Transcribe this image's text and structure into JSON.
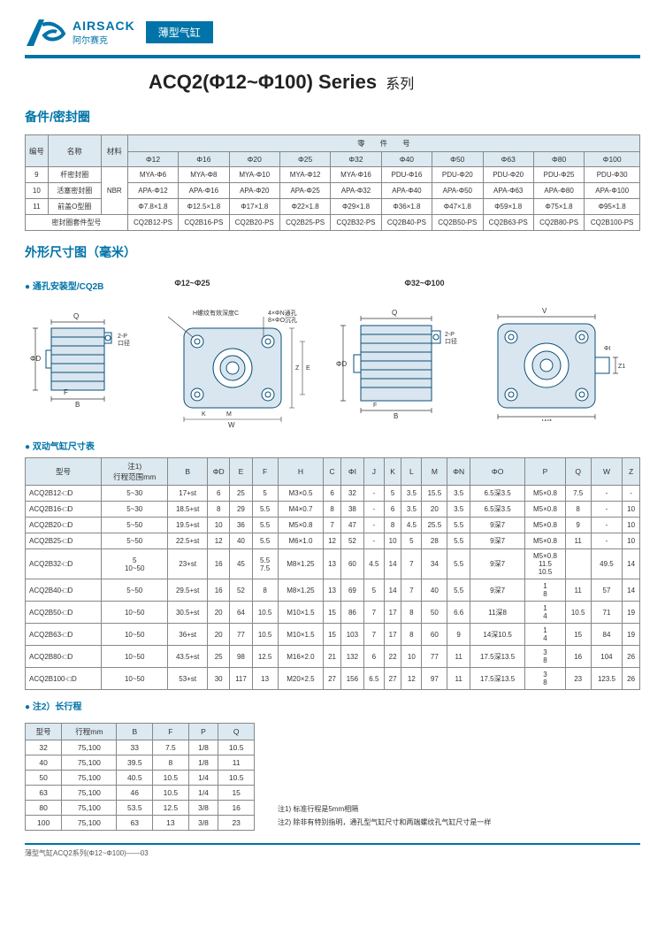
{
  "colors": {
    "brand": "#0074a8",
    "rule": "#0074a8",
    "th_bg": "#dce9f0",
    "border": "#888888",
    "text": "#333333",
    "diagram_fill": "#d9e6ef",
    "diagram_stroke": "#0a4f7a"
  },
  "logo": {
    "en": "AIRSACK",
    "cn": "阿尔赛克"
  },
  "badge": "薄型气缸",
  "title": {
    "model": "ACQ2",
    "range": "(Φ12~Φ100)",
    "series_en": "Series",
    "series_cn": "系列"
  },
  "section_parts": "备件/密封圈",
  "t1": {
    "head_row1": [
      "编号",
      "名称",
      "材料",
      "零　　件　　号"
    ],
    "head_row2": [
      "Φ12",
      "Φ16",
      "Φ20",
      "Φ25",
      "Φ32",
      "Φ40",
      "Φ50",
      "Φ63",
      "Φ80",
      "Φ100"
    ],
    "rows": [
      {
        "no": "9",
        "name": "杆密封圈",
        "mat_rowspan": "NBR",
        "cells": [
          "MYA-Φ6",
          "MYA-Φ8",
          "MYA-Φ10",
          "MYA-Φ12",
          "MYA-Φ16",
          "PDU-Φ16",
          "PDU-Φ20",
          "PDU-Φ20",
          "PDU-Φ25",
          "PDU-Φ30"
        ]
      },
      {
        "no": "10",
        "name": "活塞密封圈",
        "cells": [
          "APA-Φ12",
          "APA-Φ16",
          "APA-Φ20",
          "APA-Φ25",
          "APA-Φ32",
          "APA-Φ40",
          "APA-Φ50",
          "APA-Φ63",
          "APA-Φ80",
          "APA-Φ100"
        ]
      },
      {
        "no": "11",
        "name": "前盖O型圈",
        "cells": [
          "Φ7.8×1.8",
          "Φ12.5×1.8",
          "Φ17×1.8",
          "Φ22×1.8",
          "Φ29×1.8",
          "Φ36×1.8",
          "Φ47×1.8",
          "Φ59×1.8",
          "Φ75×1.8",
          "Φ95×1.8"
        ]
      }
    ],
    "kit_label": "密封圈套件型号",
    "kit": [
      "CQ2B12-PS",
      "CQ2B16-PS",
      "CQ2B20-PS",
      "CQ2B25-PS",
      "CQ2B32-PS",
      "CQ2B40-PS",
      "CQ2B50-PS",
      "CQ2B63-PS",
      "CQ2B80-PS",
      "CQ2B100-PS"
    ]
  },
  "section_dims": "外形尺寸图（毫米）",
  "diag_labels": {
    "a": "● 通孔安装型/CQ2B",
    "b": "Φ12~Φ25",
    "c": "Φ32~Φ100"
  },
  "diag_notes": {
    "h": "H螺纹有效深度C",
    "pn": "4×ΦN通孔\n8×ΦO沉孔",
    "p2": "2-P\n口径"
  },
  "bullet_table": "● 双动气缸尺寸表",
  "dims": {
    "head": [
      "型号",
      "注1)\n行程范围mm",
      "B",
      "ΦD",
      "E",
      "F",
      "H",
      "C",
      "ΦI",
      "J",
      "K",
      "L",
      "M",
      "ΦN",
      "ΦO",
      "P",
      "Q",
      "W",
      "Z"
    ],
    "rows": [
      [
        "ACQ2B12-□D",
        "5~30",
        "17+st",
        "6",
        "25",
        "5",
        "M3×0.5",
        "6",
        "32",
        "-",
        "5",
        "3.5",
        "15.5",
        "3.5",
        "6.5深3.5",
        "M5×0.8",
        "7.5",
        "-",
        "-"
      ],
      [
        "ACQ2B16-□D",
        "5~30",
        "18.5+st",
        "8",
        "29",
        "5.5",
        "M4×0.7",
        "8",
        "38",
        "-",
        "6",
        "3.5",
        "20",
        "3.5",
        "6.5深3.5",
        "M5×0.8",
        "8",
        "-",
        "10"
      ],
      [
        "ACQ2B20-□D",
        "5~50",
        "19.5+st",
        "10",
        "36",
        "5.5",
        "M5×0.8",
        "7",
        "47",
        "-",
        "8",
        "4.5",
        "25.5",
        "5.5",
        "9深7",
        "M5×0.8",
        "9",
        "-",
        "10"
      ],
      [
        "ACQ2B25-□D",
        "5~50",
        "22.5+st",
        "12",
        "40",
        "5.5",
        "M6×1.0",
        "12",
        "52",
        "-",
        "10",
        "5",
        "28",
        "5.5",
        "9深7",
        "M5×0.8",
        "11",
        "-",
        "10"
      ],
      [
        "ACQ2B32-□D",
        "5/10~50",
        "23+st",
        "16",
        "45",
        "5.5/7.5",
        "M8×1.25",
        "13",
        "60",
        "4.5",
        "14",
        "7",
        "34",
        "5.5",
        "9深7",
        "M5×0.8/11.5/10.5",
        "",
        "49.5",
        "14"
      ],
      [
        "ACQ2B40-□D",
        "5~50",
        "29.5+st",
        "16",
        "52",
        "8",
        "M8×1.25",
        "13",
        "69",
        "5",
        "14",
        "7",
        "40",
        "5.5",
        "9深7",
        "1/8",
        "11",
        "57",
        "14"
      ],
      [
        "ACQ2B50-□D",
        "10~50",
        "30.5+st",
        "20",
        "64",
        "10.5",
        "M10×1.5",
        "15",
        "86",
        "7",
        "17",
        "8",
        "50",
        "6.6",
        "11深8",
        "1/4",
        "10.5",
        "71",
        "19"
      ],
      [
        "ACQ2B63-□D",
        "10~50",
        "36+st",
        "20",
        "77",
        "10.5",
        "M10×1.5",
        "15",
        "103",
        "7",
        "17",
        "8",
        "60",
        "9",
        "14深10.5",
        "1/4",
        "15",
        "84",
        "19"
      ],
      [
        "ACQ2B80-□D",
        "10~50",
        "43.5+st",
        "25",
        "98",
        "12.5",
        "M16×2.0",
        "21",
        "132",
        "6",
        "22",
        "10",
        "77",
        "11",
        "17.5深13.5",
        "3/8",
        "16",
        "104",
        "26"
      ],
      [
        "ACQ2B100-□D",
        "10~50",
        "53+st",
        "30",
        "117",
        "13",
        "M20×2.5",
        "27",
        "156",
        "6.5",
        "27",
        "12",
        "97",
        "11",
        "17.5深13.5",
        "3/8",
        "23",
        "123.5",
        "26"
      ]
    ]
  },
  "bullet_long": "● 注2）长行程",
  "long": {
    "head": [
      "型号",
      "行程mm",
      "B",
      "F",
      "P",
      "Q"
    ],
    "rows": [
      [
        "32",
        "75,100",
        "33",
        "7.5",
        "1/8",
        "10.5"
      ],
      [
        "40",
        "75,100",
        "39.5",
        "8",
        "1/8",
        "11"
      ],
      [
        "50",
        "75,100",
        "40.5",
        "10.5",
        "1/4",
        "10.5"
      ],
      [
        "63",
        "75,100",
        "46",
        "10.5",
        "1/4",
        "15"
      ],
      [
        "80",
        "75,100",
        "53.5",
        "12.5",
        "3/8",
        "16"
      ],
      [
        "100",
        "75,100",
        "63",
        "13",
        "3/8",
        "23"
      ]
    ]
  },
  "notes": {
    "n1": "注1) 标准行程是5mm相隔",
    "n2": "注2) 除非有特别指明，通孔型气缸尺寸和两端螺纹孔气缸尺寸是一样"
  },
  "footer": "薄型气缸ACQ2系列(Φ12~Φ100)——03"
}
